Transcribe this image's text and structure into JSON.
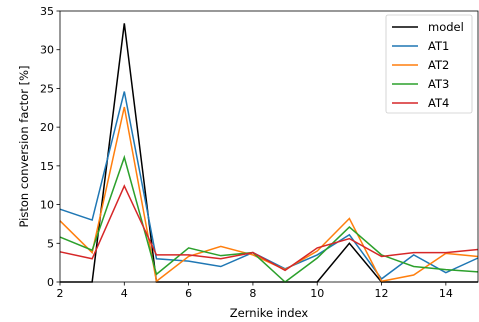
{
  "chart_data": {
    "type": "line",
    "title": "",
    "xlabel": "Zernike index",
    "ylabel": "Piston conversion factor [%]",
    "xlim": [
      2,
      15
    ],
    "ylim": [
      0,
      35
    ],
    "xticks": [
      2,
      4,
      6,
      8,
      10,
      12,
      14
    ],
    "yticks": [
      0,
      5,
      10,
      15,
      20,
      25,
      30,
      35
    ],
    "grid": false,
    "legend_position": "top-right",
    "x": [
      2,
      3,
      4,
      5,
      6,
      7,
      8,
      9,
      10,
      11,
      12,
      13,
      14,
      15
    ],
    "series": [
      {
        "name": "model",
        "color": "#000000",
        "values": [
          0,
          0,
          33.4,
          0,
          0,
          0,
          0,
          0,
          0,
          5.0,
          0,
          0,
          0,
          0
        ]
      },
      {
        "name": "AT1",
        "color": "#1f77b4",
        "values": [
          9.4,
          8.0,
          24.6,
          3.0,
          2.7,
          2.0,
          3.8,
          1.7,
          3.5,
          6.1,
          0.4,
          3.5,
          1.2,
          3.1
        ]
      },
      {
        "name": "AT2",
        "color": "#ff7f0e",
        "values": [
          7.9,
          3.8,
          22.6,
          0.1,
          3.3,
          4.6,
          3.5,
          1.6,
          4.0,
          8.2,
          0.1,
          0.9,
          3.7,
          3.3
        ]
      },
      {
        "name": "AT3",
        "color": "#2ca02c",
        "values": [
          5.8,
          4.1,
          16.1,
          1.0,
          4.4,
          3.4,
          3.8,
          0.0,
          3.1,
          7.1,
          3.5,
          2.0,
          1.6,
          1.3
        ]
      },
      {
        "name": "AT4",
        "color": "#d62728",
        "values": [
          3.9,
          3.0,
          12.4,
          3.5,
          3.5,
          3.0,
          3.8,
          1.5,
          4.4,
          5.6,
          3.3,
          3.8,
          3.8,
          4.2
        ]
      }
    ]
  }
}
